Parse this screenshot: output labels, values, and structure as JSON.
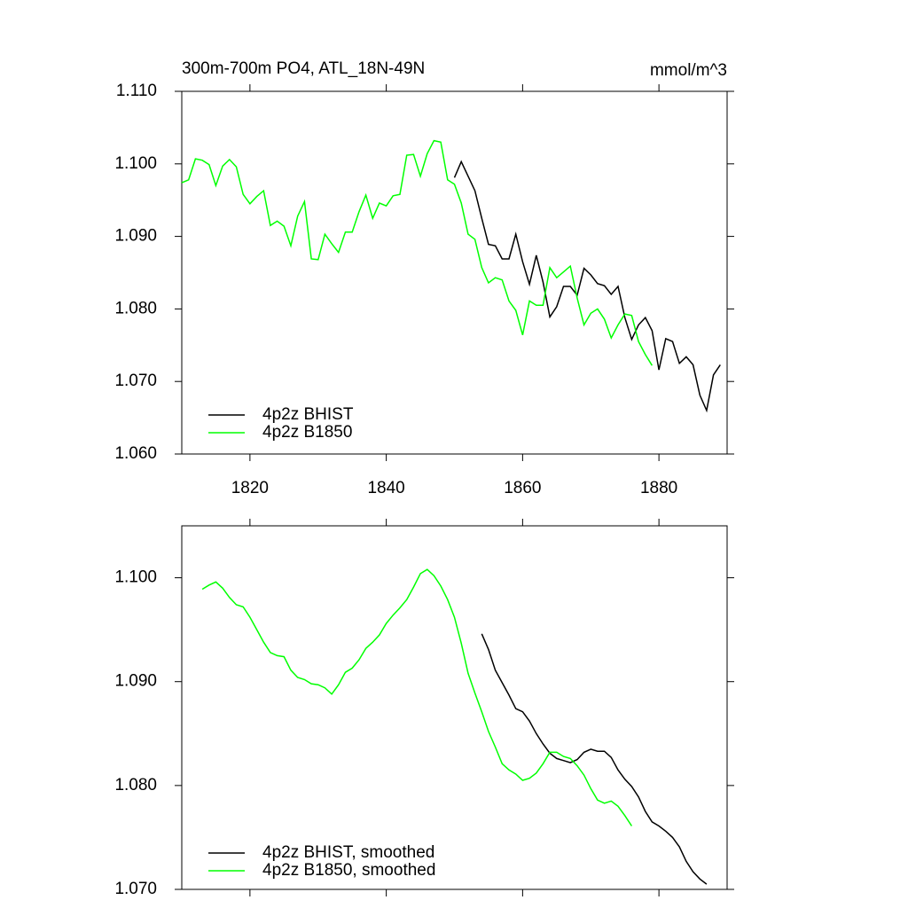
{
  "chart_data": [
    {
      "type": "line",
      "title": "300m-700m PO4, ATL_18N-49N",
      "units": "mmol/m^3",
      "xlim": [
        1810,
        1890
      ],
      "xticks": [
        1820,
        1840,
        1860,
        1880
      ],
      "ylim": [
        1.06,
        1.11
      ],
      "yticks": [
        {
          "value": 1.06,
          "label": "1.060"
        },
        {
          "value": 1.07,
          "label": "1.070"
        },
        {
          "value": 1.08,
          "label": "1.080"
        },
        {
          "value": 1.09,
          "label": "1.090"
        },
        {
          "value": 1.1,
          "label": "1.100"
        },
        {
          "value": 1.11,
          "label": "1.110"
        }
      ],
      "series": [
        {
          "name": "4p2z BHIST",
          "color": "#000000",
          "x": [
            1850,
            1851,
            1852,
            1853,
            1854,
            1855,
            1856,
            1857,
            1858,
            1859,
            1860,
            1861,
            1862,
            1863,
            1864,
            1865,
            1866,
            1867,
            1868,
            1869,
            1870,
            1871,
            1872,
            1873,
            1874,
            1875,
            1876,
            1877,
            1878,
            1879,
            1880,
            1881,
            1882,
            1883,
            1884,
            1885,
            1886,
            1887,
            1888,
            1889
          ],
          "values": [
            1.0981,
            1.1003,
            1.0983,
            1.0963,
            1.0925,
            1.0889,
            1.0887,
            1.0869,
            1.0869,
            1.0903,
            1.0865,
            1.0834,
            1.0874,
            1.0837,
            1.0789,
            1.0803,
            1.0831,
            1.0831,
            1.0819,
            1.0856,
            1.0847,
            1.0835,
            1.0832,
            1.082,
            1.0831,
            1.0788,
            1.0758,
            1.0778,
            1.0788,
            1.077,
            1.0716,
            1.0759,
            1.0755,
            1.0725,
            1.0734,
            1.0723,
            1.0681,
            1.066,
            1.0709,
            1.0723
          ]
        },
        {
          "name": "4p2z B1850",
          "color": "#00ff00",
          "x": [
            1810,
            1811,
            1812,
            1813,
            1814,
            1815,
            1816,
            1817,
            1818,
            1819,
            1820,
            1821,
            1822,
            1823,
            1824,
            1825,
            1826,
            1827,
            1828,
            1829,
            1830,
            1831,
            1832,
            1833,
            1834,
            1835,
            1836,
            1837,
            1838,
            1839,
            1840,
            1841,
            1842,
            1843,
            1844,
            1845,
            1846,
            1847,
            1848,
            1849,
            1850,
            1851,
            1852,
            1853,
            1854,
            1855,
            1856,
            1857,
            1858,
            1859,
            1860,
            1861,
            1862,
            1863,
            1864,
            1865,
            1866,
            1867,
            1868,
            1869,
            1870,
            1871,
            1872,
            1873,
            1874,
            1875,
            1876,
            1877,
            1878,
            1879
          ],
          "values": [
            1.0974,
            1.0978,
            1.1007,
            1.1005,
            1.0999,
            1.097,
            1.0997,
            1.1006,
            1.0996,
            1.0958,
            1.0945,
            1.0955,
            1.0963,
            1.0915,
            1.0921,
            1.0914,
            1.0887,
            1.0928,
            1.0948,
            1.0869,
            1.0868,
            1.0903,
            1.089,
            1.0878,
            1.0906,
            1.0906,
            1.0934,
            1.0957,
            1.0925,
            1.0946,
            1.0942,
            1.0956,
            1.0958,
            1.1012,
            1.1013,
            1.0983,
            1.1014,
            1.1032,
            1.103,
            1.0978,
            1.0972,
            1.0946,
            1.0903,
            1.0896,
            1.0857,
            1.0836,
            1.0843,
            1.084,
            1.0811,
            1.0798,
            1.0764,
            1.0811,
            1.0805,
            1.0805,
            1.0857,
            1.0843,
            1.0851,
            1.0859,
            1.0815,
            1.0778,
            1.0794,
            1.08,
            1.0786,
            1.076,
            1.0778,
            1.0793,
            1.0791,
            1.0755,
            1.0737,
            1.0722
          ]
        }
      ]
    },
    {
      "type": "line",
      "xlim": [
        1810,
        1890
      ],
      "xticks": [
        1820,
        1840,
        1860,
        1880
      ],
      "ylim": [
        1.07,
        1.105
      ],
      "yticks": [
        {
          "value": 1.07,
          "label": "1.070"
        },
        {
          "value": 1.08,
          "label": "1.080"
        },
        {
          "value": 1.09,
          "label": "1.090"
        },
        {
          "value": 1.1,
          "label": "1.100"
        }
      ],
      "series": [
        {
          "name": "4p2z BHIST, smoothed",
          "color": "#000000",
          "x": [
            1854,
            1855,
            1856,
            1857,
            1858,
            1859,
            1860,
            1861,
            1862,
            1863,
            1864,
            1865,
            1866,
            1867,
            1868,
            1869,
            1870,
            1871,
            1872,
            1873,
            1874,
            1875,
            1876,
            1877,
            1878,
            1879,
            1880,
            1881,
            1882,
            1883,
            1884,
            1885,
            1886,
            1887
          ],
          "values": [
            1.0946,
            1.0931,
            1.0911,
            1.0899,
            1.0887,
            1.0874,
            1.0871,
            1.0862,
            1.085,
            1.084,
            1.0831,
            1.0826,
            1.0824,
            1.0822,
            1.0825,
            1.0832,
            1.0835,
            1.0833,
            1.0833,
            1.0827,
            1.0815,
            1.0806,
            1.0799,
            1.0789,
            1.0775,
            1.0765,
            1.0761,
            1.0756,
            1.075,
            1.0741,
            1.0727,
            1.0717,
            1.071,
            1.0705
          ]
        },
        {
          "name": "4p2z B1850, smoothed",
          "color": "#00ff00",
          "x": [
            1813,
            1814,
            1815,
            1816,
            1817,
            1818,
            1819,
            1820,
            1821,
            1822,
            1823,
            1824,
            1825,
            1826,
            1827,
            1828,
            1829,
            1830,
            1831,
            1832,
            1833,
            1834,
            1835,
            1836,
            1837,
            1838,
            1839,
            1840,
            1841,
            1842,
            1843,
            1844,
            1845,
            1846,
            1847,
            1848,
            1849,
            1850,
            1851,
            1852,
            1853,
            1854,
            1855,
            1856,
            1857,
            1858,
            1859,
            1860,
            1861,
            1862,
            1863,
            1864,
            1865,
            1866,
            1867,
            1868,
            1869,
            1870,
            1871,
            1872,
            1873,
            1874,
            1875,
            1876
          ],
          "values": [
            1.0989,
            1.0993,
            1.0996,
            1.099,
            1.0981,
            1.0974,
            1.0972,
            1.0962,
            1.095,
            1.0938,
            1.0928,
            1.0925,
            1.0924,
            1.0911,
            1.0904,
            1.0902,
            1.0898,
            1.0897,
            1.0894,
            1.0888,
            1.0897,
            1.0909,
            1.0913,
            1.0921,
            1.0932,
            1.0938,
            1.0945,
            1.0956,
            1.0964,
            1.0971,
            1.0979,
            1.0991,
            1.1004,
            1.1008,
            1.1002,
            1.0992,
            1.0979,
            1.0962,
            1.0937,
            1.0908,
            1.0889,
            1.0871,
            1.0852,
            1.0837,
            1.0821,
            1.0815,
            1.0811,
            1.0805,
            1.0807,
            1.0812,
            1.0821,
            1.0832,
            1.0832,
            1.0828,
            1.0826,
            1.0819,
            1.081,
            1.0797,
            1.0786,
            1.0783,
            1.0785,
            1.078,
            1.0771,
            1.0761
          ]
        }
      ]
    }
  ]
}
